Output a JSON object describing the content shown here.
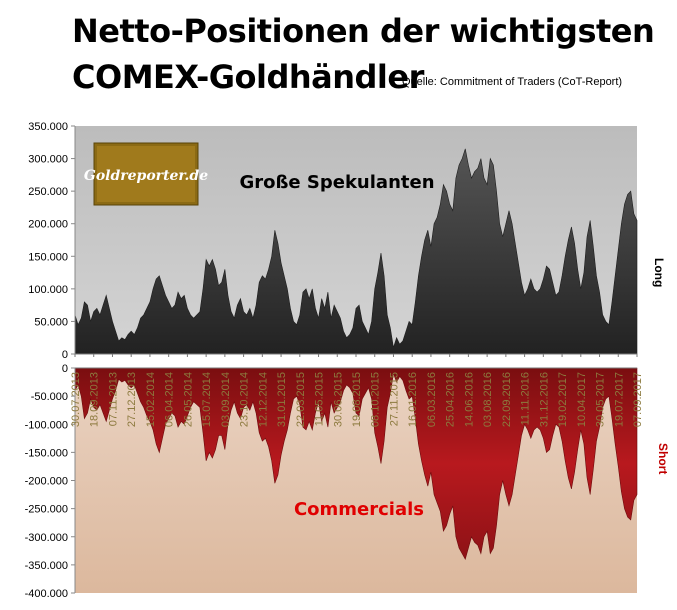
{
  "header": {
    "title_line1": "Netto-Positionen der wichtigsten",
    "title_line2": "COMEX-Goldhändler",
    "source": "Quelle: Commitment of Traders (CoT-Report)"
  },
  "logo": {
    "text": "Goldreporter.de"
  },
  "colors": {
    "long_fill": "#3d3d3d",
    "short_fill": "#a3151a",
    "long_bg": "#c8c8c8",
    "short_bg": "#e2c1a8",
    "commercials_label": "#e00000",
    "short_label": "#c00000"
  },
  "chart_data": {
    "type": "area",
    "y_top": {
      "range": [
        0,
        350000
      ],
      "ticks": [
        "350.000",
        "300.000",
        "250.000",
        "200.000",
        "150.000",
        "100.000",
        "50.000",
        "0"
      ]
    },
    "y_bottom": {
      "range": [
        -400000,
        0
      ],
      "ticks": [
        "0",
        "-50.000",
        "-100.000",
        "-150.000",
        "-200.000",
        "-250.000",
        "-300.000",
        "-350.000",
        "-400.000"
      ]
    },
    "x_tick_labels": [
      "30.07.2013",
      "18.09.2013",
      "07.11.2013",
      "27.12.2013",
      "15.02.2014",
      "06.04.2014",
      "26.05.2014",
      "15.07.2014",
      "03.09.2014",
      "23.10.2014",
      "12.12.2014",
      "31.01.2015",
      "22.03.2015",
      "11.05.2015",
      "30.06.2015",
      "19.08.2015",
      "08.10.2015",
      "27.11.2015",
      "16.01.2016",
      "06.03.2016",
      "25.04.2016",
      "14.06.2016",
      "03.08.2016",
      "22.09.2016",
      "11.11.2016",
      "31.12.2016",
      "19.02.2017",
      "10.04.2017",
      "30.05.2017",
      "19.07.2017",
      "07.09.2017"
    ],
    "series": [
      {
        "name": "Große Spekulanten",
        "side_label": "Long",
        "values": [
          60000,
          45000,
          55000,
          80000,
          75000,
          50000,
          65000,
          70000,
          60000,
          75000,
          90000,
          70000,
          50000,
          35000,
          20000,
          25000,
          22000,
          30000,
          35000,
          30000,
          40000,
          55000,
          60000,
          70000,
          80000,
          100000,
          115000,
          120000,
          105000,
          90000,
          80000,
          70000,
          75000,
          95000,
          85000,
          90000,
          70000,
          60000,
          55000,
          60000,
          65000,
          100000,
          145000,
          135000,
          145000,
          130000,
          105000,
          110000,
          130000,
          90000,
          65000,
          55000,
          75000,
          85000,
          65000,
          60000,
          70000,
          55000,
          75000,
          110000,
          120000,
          115000,
          130000,
          150000,
          190000,
          170000,
          140000,
          120000,
          100000,
          70000,
          50000,
          45000,
          60000,
          95000,
          100000,
          85000,
          100000,
          70000,
          55000,
          85000,
          70000,
          95000,
          55000,
          75000,
          65000,
          55000,
          35000,
          25000,
          30000,
          40000,
          70000,
          75000,
          50000,
          40000,
          30000,
          50000,
          100000,
          125000,
          155000,
          120000,
          60000,
          40000,
          10000,
          25000,
          15000,
          20000,
          35000,
          50000,
          45000,
          80000,
          120000,
          150000,
          175000,
          190000,
          165000,
          200000,
          210000,
          230000,
          260000,
          250000,
          230000,
          220000,
          270000,
          290000,
          300000,
          315000,
          290000,
          270000,
          280000,
          285000,
          300000,
          270000,
          260000,
          300000,
          290000,
          250000,
          200000,
          180000,
          200000,
          220000,
          200000,
          170000,
          140000,
          110000,
          90000,
          100000,
          115000,
          100000,
          95000,
          100000,
          115000,
          135000,
          130000,
          110000,
          90000,
          95000,
          120000,
          150000,
          175000,
          195000,
          170000,
          130000,
          100000,
          125000,
          180000,
          205000,
          165000,
          120000,
          95000,
          60000,
          50000,
          45000,
          80000,
          120000,
          160000,
          200000,
          230000,
          245000,
          250000,
          215000,
          205000
        ]
      },
      {
        "name": "Commercials",
        "side_label": "Short",
        "values": [
          -40000,
          -30000,
          -50000,
          -90000,
          -80000,
          -55000,
          -70000,
          -75000,
          -65000,
          -80000,
          -95000,
          -75000,
          -55000,
          -40000,
          -20000,
          -25000,
          -22000,
          -30000,
          -35000,
          -30000,
          -45000,
          -60000,
          -70000,
          -85000,
          -95000,
          -110000,
          -135000,
          -150000,
          -125000,
          -100000,
          -90000,
          -80000,
          -85000,
          -105000,
          -95000,
          -100000,
          -85000,
          -70000,
          -60000,
          -65000,
          -70000,
          -115000,
          -165000,
          -150000,
          -160000,
          -145000,
          -120000,
          -120000,
          -145000,
          -100000,
          -75000,
          -60000,
          -80000,
          -90000,
          -70000,
          -65000,
          -75000,
          -60000,
          -80000,
          -115000,
          -130000,
          -125000,
          -140000,
          -165000,
          -205000,
          -190000,
          -155000,
          -130000,
          -110000,
          -80000,
          -55000,
          -50000,
          -65000,
          -105000,
          -110000,
          -95000,
          -110000,
          -80000,
          -60000,
          -95000,
          -80000,
          -105000,
          -60000,
          -80000,
          -70000,
          -60000,
          -40000,
          -30000,
          -35000,
          -45000,
          -80000,
          -85000,
          -55000,
          -45000,
          -35000,
          -55000,
          -115000,
          -140000,
          -170000,
          -130000,
          -70000,
          -45000,
          -10000,
          -25000,
          -15000,
          -22000,
          -40000,
          -55000,
          -50000,
          -90000,
          -135000,
          -165000,
          -190000,
          -210000,
          -185000,
          -225000,
          -240000,
          -255000,
          -290000,
          -280000,
          -260000,
          -245000,
          -300000,
          -320000,
          -330000,
          -340000,
          -320000,
          -300000,
          -310000,
          -315000,
          -330000,
          -300000,
          -290000,
          -330000,
          -320000,
          -280000,
          -225000,
          -200000,
          -225000,
          -245000,
          -225000,
          -190000,
          -155000,
          -120000,
          -100000,
          -110000,
          -125000,
          -110000,
          -105000,
          -110000,
          -125000,
          -150000,
          -145000,
          -120000,
          -100000,
          -105000,
          -130000,
          -165000,
          -195000,
          -215000,
          -185000,
          -145000,
          -110000,
          -135000,
          -195000,
          -225000,
          -180000,
          -130000,
          -105000,
          -70000,
          -55000,
          -50000,
          -90000,
          -135000,
          -175000,
          -220000,
          -250000,
          -265000,
          -270000,
          -235000,
          -225000
        ]
      }
    ]
  }
}
